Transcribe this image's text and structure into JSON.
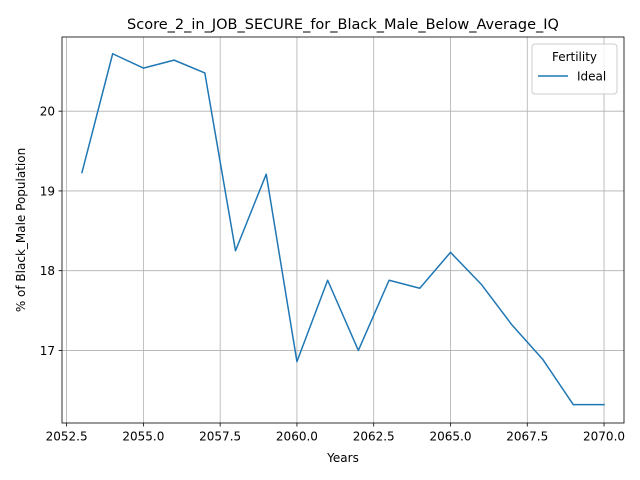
{
  "chart_data": {
    "type": "line",
    "title": "Score_2_in_JOB_SECURE_for_Black_Male_Below_Average_IQ",
    "xlabel": "Years",
    "ylabel": "% of Black_Male Population",
    "xlim": [
      2052.35,
      2070.65
    ],
    "ylim": [
      16.09,
      20.93
    ],
    "xticks": [
      2052.5,
      2055.0,
      2057.5,
      2060.0,
      2062.5,
      2065.0,
      2067.5,
      2070.0
    ],
    "xtick_labels": [
      "2052.5",
      "2055.0",
      "2057.5",
      "2060.0",
      "2062.5",
      "2065.0",
      "2067.5",
      "2070.0"
    ],
    "yticks": [
      17,
      18,
      19,
      20
    ],
    "ytick_labels": [
      "17",
      "18",
      "19",
      "20"
    ],
    "grid": true,
    "legend": {
      "title": "Fertility",
      "position": "top-right"
    },
    "series": [
      {
        "name": "Ideal",
        "color": "#1f77b4",
        "x": [
          2053,
          2054,
          2055,
          2056,
          2057,
          2058,
          2059,
          2060,
          2061,
          2062,
          2063,
          2064,
          2065,
          2066,
          2067,
          2068,
          2069,
          2070
        ],
        "y": [
          19.23,
          20.72,
          20.54,
          20.64,
          20.48,
          18.25,
          19.21,
          16.86,
          17.88,
          17.0,
          17.88,
          17.78,
          18.23,
          17.83,
          17.32,
          16.89,
          16.32,
          16.32
        ]
      }
    ]
  }
}
